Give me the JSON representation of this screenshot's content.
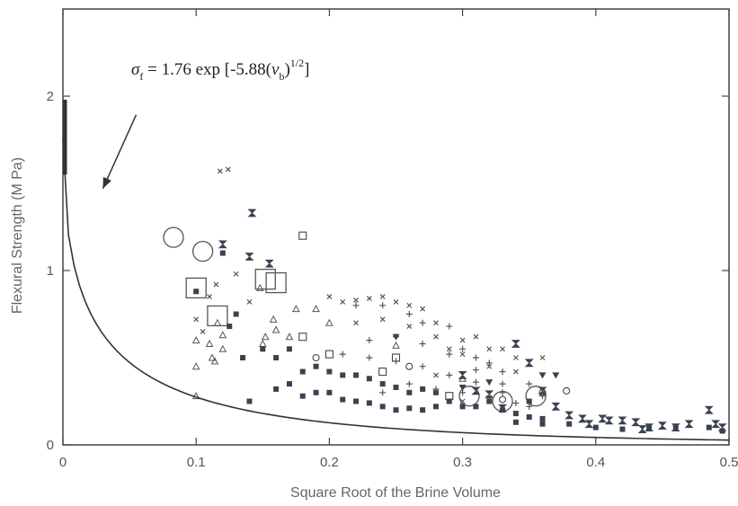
{
  "chart_data": {
    "type": "scatter",
    "title": "",
    "xlabel": "Square Root of the Brine Volume",
    "ylabel": "Flexural Strength  (M Pa)",
    "xlim": [
      0,
      0.5
    ],
    "ylim": [
      0,
      2.5
    ],
    "x_ticks": [
      0,
      0.1,
      0.2,
      0.3,
      0.4,
      0.5
    ],
    "x_tick_labels": [
      "0",
      "0.1",
      "0.2",
      "0.3",
      "0.4",
      "0.5"
    ],
    "y_ticks": [
      0,
      1,
      2
    ],
    "y_tick_labels": [
      "0",
      "1",
      "2"
    ],
    "grid": false,
    "annotation": {
      "text_parts": [
        "σ",
        "f",
        " = 1.76 exp [-5.88(",
        "v",
        "b",
        ")",
        "1/2",
        "]"
      ],
      "arrow_target": [
        0.03,
        1.47
      ]
    },
    "fit_curve": {
      "a": 1.76,
      "b": -5.88,
      "x_range": [
        0,
        0.5
      ]
    },
    "series": [
      {
        "marker": "large-circle",
        "points": [
          [
            0.083,
            1.19
          ],
          [
            0.105,
            1.11
          ],
          [
            0.305,
            0.28
          ],
          [
            0.33,
            0.25
          ],
          [
            0.355,
            0.28
          ]
        ]
      },
      {
        "marker": "large-square",
        "points": [
          [
            0.1,
            0.9
          ],
          [
            0.116,
            0.74
          ],
          [
            0.152,
            0.95
          ],
          [
            0.16,
            0.93
          ]
        ]
      },
      {
        "marker": "small-square",
        "points": [
          [
            0.18,
            1.2
          ],
          [
            0.18,
            0.62
          ],
          [
            0.2,
            0.52
          ],
          [
            0.25,
            0.5
          ],
          [
            0.29,
            0.28
          ],
          [
            0.24,
            0.42
          ]
        ]
      },
      {
        "marker": "small-circle",
        "points": [
          [
            0.19,
            0.5
          ],
          [
            0.26,
            0.45
          ],
          [
            0.33,
            0.26
          ],
          [
            0.36,
            0.3
          ],
          [
            0.378,
            0.31
          ]
        ]
      },
      {
        "marker": "triangle",
        "points": [
          [
            0.1,
            0.28
          ],
          [
            0.1,
            0.45
          ],
          [
            0.1,
            0.6
          ],
          [
            0.11,
            0.58
          ],
          [
            0.112,
            0.5
          ],
          [
            0.114,
            0.48
          ],
          [
            0.116,
            0.7
          ],
          [
            0.12,
            0.55
          ],
          [
            0.12,
            0.63
          ],
          [
            0.148,
            0.9
          ],
          [
            0.15,
            0.58
          ],
          [
            0.152,
            0.62
          ],
          [
            0.158,
            0.72
          ],
          [
            0.16,
            0.66
          ],
          [
            0.17,
            0.62
          ],
          [
            0.175,
            0.78
          ],
          [
            0.19,
            0.78
          ],
          [
            0.2,
            0.7
          ],
          [
            0.25,
            0.57
          ],
          [
            0.3,
            0.38
          ]
        ]
      },
      {
        "marker": "cross",
        "points": [
          [
            0.1,
            0.72
          ],
          [
            0.105,
            0.65
          ],
          [
            0.11,
            0.85
          ],
          [
            0.115,
            0.92
          ],
          [
            0.118,
            1.57
          ],
          [
            0.124,
            1.58
          ],
          [
            0.13,
            0.98
          ],
          [
            0.14,
            0.82
          ],
          [
            0.2,
            0.85
          ],
          [
            0.21,
            0.82
          ],
          [
            0.22,
            0.83
          ],
          [
            0.23,
            0.84
          ],
          [
            0.24,
            0.85
          ],
          [
            0.25,
            0.82
          ],
          [
            0.26,
            0.8
          ],
          [
            0.27,
            0.78
          ],
          [
            0.28,
            0.62
          ],
          [
            0.29,
            0.55
          ],
          [
            0.3,
            0.52
          ],
          [
            0.31,
            0.62
          ],
          [
            0.32,
            0.55
          ],
          [
            0.33,
            0.55
          ],
          [
            0.34,
            0.5
          ],
          [
            0.36,
            0.5
          ],
          [
            0.22,
            0.7
          ],
          [
            0.24,
            0.72
          ],
          [
            0.26,
            0.68
          ],
          [
            0.28,
            0.7
          ],
          [
            0.3,
            0.6
          ],
          [
            0.32,
            0.45
          ],
          [
            0.34,
            0.42
          ],
          [
            0.28,
            0.4
          ],
          [
            0.3,
            0.25
          ]
        ]
      },
      {
        "marker": "hourglass",
        "points": [
          [
            0.12,
            1.15
          ],
          [
            0.14,
            1.08
          ],
          [
            0.142,
            1.33
          ],
          [
            0.155,
            1.04
          ],
          [
            0.3,
            0.4
          ],
          [
            0.31,
            0.31
          ],
          [
            0.32,
            0.29
          ],
          [
            0.33,
            0.21
          ],
          [
            0.34,
            0.58
          ],
          [
            0.35,
            0.47
          ],
          [
            0.36,
            0.31
          ],
          [
            0.37,
            0.22
          ],
          [
            0.38,
            0.17
          ],
          [
            0.39,
            0.15
          ],
          [
            0.395,
            0.12
          ],
          [
            0.405,
            0.15
          ],
          [
            0.41,
            0.14
          ],
          [
            0.42,
            0.14
          ],
          [
            0.43,
            0.13
          ],
          [
            0.435,
            0.09
          ],
          [
            0.44,
            0.1
          ],
          [
            0.45,
            0.11
          ],
          [
            0.46,
            0.1
          ],
          [
            0.47,
            0.12
          ],
          [
            0.485,
            0.2
          ],
          [
            0.49,
            0.12
          ],
          [
            0.495,
            0.1
          ]
        ]
      },
      {
        "marker": "filled-square",
        "points": [
          [
            0.1,
            0.88
          ],
          [
            0.12,
            1.1
          ],
          [
            0.125,
            0.68
          ],
          [
            0.13,
            0.75
          ],
          [
            0.135,
            0.5
          ],
          [
            0.14,
            0.25
          ],
          [
            0.15,
            0.55
          ],
          [
            0.16,
            0.32
          ],
          [
            0.16,
            0.5
          ],
          [
            0.17,
            0.35
          ],
          [
            0.17,
            0.55
          ],
          [
            0.18,
            0.28
          ],
          [
            0.18,
            0.42
          ],
          [
            0.19,
            0.3
          ],
          [
            0.19,
            0.45
          ],
          [
            0.2,
            0.3
          ],
          [
            0.2,
            0.42
          ],
          [
            0.21,
            0.26
          ],
          [
            0.21,
            0.4
          ],
          [
            0.22,
            0.25
          ],
          [
            0.22,
            0.4
          ],
          [
            0.23,
            0.24
          ],
          [
            0.23,
            0.38
          ],
          [
            0.24,
            0.22
          ],
          [
            0.24,
            0.35
          ],
          [
            0.25,
            0.2
          ],
          [
            0.25,
            0.33
          ],
          [
            0.26,
            0.21
          ],
          [
            0.26,
            0.3
          ],
          [
            0.27,
            0.2
          ],
          [
            0.27,
            0.32
          ],
          [
            0.28,
            0.22
          ],
          [
            0.28,
            0.3
          ],
          [
            0.29,
            0.25
          ],
          [
            0.3,
            0.22
          ],
          [
            0.31,
            0.22
          ],
          [
            0.32,
            0.25
          ],
          [
            0.33,
            0.2
          ],
          [
            0.34,
            0.18
          ],
          [
            0.35,
            0.25
          ],
          [
            0.35,
            0.16
          ],
          [
            0.36,
            0.15
          ],
          [
            0.34,
            0.13
          ],
          [
            0.36,
            0.12
          ],
          [
            0.38,
            0.12
          ],
          [
            0.4,
            0.1
          ],
          [
            0.42,
            0.09
          ],
          [
            0.44,
            0.1
          ],
          [
            0.46,
            0.1
          ],
          [
            0.485,
            0.1
          ],
          [
            0.495,
            0.08
          ]
        ]
      },
      {
        "marker": "plus",
        "points": [
          [
            0.22,
            0.8
          ],
          [
            0.24,
            0.8
          ],
          [
            0.26,
            0.75
          ],
          [
            0.27,
            0.7
          ],
          [
            0.29,
            0.68
          ],
          [
            0.3,
            0.55
          ],
          [
            0.31,
            0.5
          ],
          [
            0.32,
            0.47
          ],
          [
            0.33,
            0.42
          ],
          [
            0.23,
            0.6
          ],
          [
            0.25,
            0.62
          ],
          [
            0.27,
            0.58
          ],
          [
            0.29,
            0.52
          ],
          [
            0.31,
            0.43
          ],
          [
            0.33,
            0.35
          ],
          [
            0.35,
            0.35
          ],
          [
            0.36,
            0.28
          ],
          [
            0.21,
            0.52
          ],
          [
            0.23,
            0.5
          ],
          [
            0.25,
            0.48
          ],
          [
            0.27,
            0.45
          ],
          [
            0.29,
            0.4
          ],
          [
            0.31,
            0.36
          ],
          [
            0.33,
            0.3
          ],
          [
            0.35,
            0.22
          ],
          [
            0.24,
            0.3
          ],
          [
            0.26,
            0.35
          ],
          [
            0.28,
            0.32
          ],
          [
            0.3,
            0.3
          ],
          [
            0.32,
            0.28
          ],
          [
            0.34,
            0.24
          ]
        ]
      },
      {
        "marker": "filled-triangle-down",
        "points": [
          [
            0.25,
            0.62
          ],
          [
            0.3,
            0.33
          ],
          [
            0.32,
            0.36
          ],
          [
            0.36,
            0.4
          ],
          [
            0.37,
            0.4
          ]
        ]
      }
    ]
  }
}
